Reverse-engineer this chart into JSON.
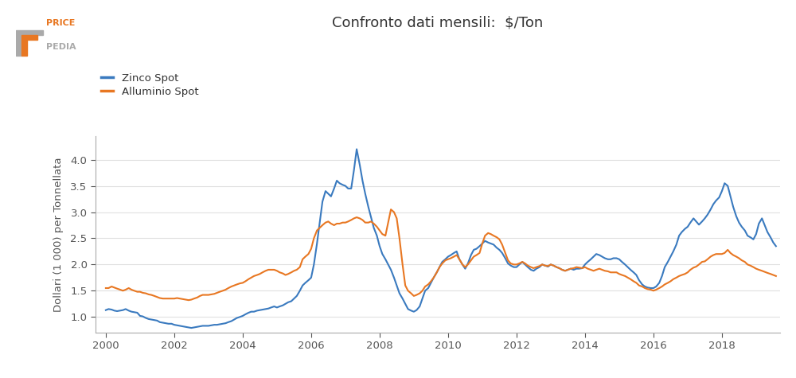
{
  "title": "Confronto dati mensili:  $/Ton",
  "ylabel": "Dollari (1 000) per Tonnellata",
  "zinc_color": "#3a7abf",
  "alum_color": "#e87722",
  "background_color": "#ffffff",
  "grid_color": "#e0e0e0",
  "ylim": [
    0.7,
    4.45
  ],
  "yticks": [
    1.0,
    1.5,
    2.0,
    2.5,
    3.0,
    3.5,
    4.0
  ],
  "xlim": [
    1999.7,
    2019.7
  ],
  "xticks": [
    2000,
    2002,
    2004,
    2006,
    2008,
    2010,
    2012,
    2014,
    2016,
    2018
  ],
  "legend_labels": [
    "Zinco Spot",
    "Alluminio Spot"
  ],
  "zinc_data": [
    [
      2000.0,
      1.13
    ],
    [
      2000.08,
      1.15
    ],
    [
      2000.17,
      1.14
    ],
    [
      2000.25,
      1.12
    ],
    [
      2000.33,
      1.11
    ],
    [
      2000.42,
      1.12
    ],
    [
      2000.5,
      1.13
    ],
    [
      2000.58,
      1.15
    ],
    [
      2000.67,
      1.12
    ],
    [
      2000.75,
      1.1
    ],
    [
      2000.83,
      1.09
    ],
    [
      2000.92,
      1.08
    ],
    [
      2001.0,
      1.02
    ],
    [
      2001.08,
      1.01
    ],
    [
      2001.17,
      0.98
    ],
    [
      2001.25,
      0.96
    ],
    [
      2001.33,
      0.95
    ],
    [
      2001.42,
      0.94
    ],
    [
      2001.5,
      0.93
    ],
    [
      2001.58,
      0.9
    ],
    [
      2001.67,
      0.89
    ],
    [
      2001.75,
      0.88
    ],
    [
      2001.83,
      0.87
    ],
    [
      2001.92,
      0.87
    ],
    [
      2002.0,
      0.85
    ],
    [
      2002.08,
      0.84
    ],
    [
      2002.17,
      0.83
    ],
    [
      2002.25,
      0.82
    ],
    [
      2002.33,
      0.81
    ],
    [
      2002.42,
      0.8
    ],
    [
      2002.5,
      0.79
    ],
    [
      2002.58,
      0.8
    ],
    [
      2002.67,
      0.81
    ],
    [
      2002.75,
      0.82
    ],
    [
      2002.83,
      0.83
    ],
    [
      2002.92,
      0.83
    ],
    [
      2003.0,
      0.83
    ],
    [
      2003.08,
      0.84
    ],
    [
      2003.17,
      0.85
    ],
    [
      2003.25,
      0.85
    ],
    [
      2003.33,
      0.86
    ],
    [
      2003.42,
      0.87
    ],
    [
      2003.5,
      0.88
    ],
    [
      2003.58,
      0.9
    ],
    [
      2003.67,
      0.92
    ],
    [
      2003.75,
      0.95
    ],
    [
      2003.83,
      0.98
    ],
    [
      2003.92,
      1.0
    ],
    [
      2004.0,
      1.02
    ],
    [
      2004.08,
      1.05
    ],
    [
      2004.17,
      1.08
    ],
    [
      2004.25,
      1.1
    ],
    [
      2004.33,
      1.1
    ],
    [
      2004.42,
      1.12
    ],
    [
      2004.5,
      1.13
    ],
    [
      2004.58,
      1.14
    ],
    [
      2004.67,
      1.15
    ],
    [
      2004.75,
      1.16
    ],
    [
      2004.83,
      1.18
    ],
    [
      2004.92,
      1.2
    ],
    [
      2005.0,
      1.18
    ],
    [
      2005.08,
      1.2
    ],
    [
      2005.17,
      1.22
    ],
    [
      2005.25,
      1.25
    ],
    [
      2005.33,
      1.28
    ],
    [
      2005.42,
      1.3
    ],
    [
      2005.5,
      1.35
    ],
    [
      2005.58,
      1.4
    ],
    [
      2005.67,
      1.5
    ],
    [
      2005.75,
      1.6
    ],
    [
      2005.83,
      1.65
    ],
    [
      2005.92,
      1.7
    ],
    [
      2006.0,
      1.75
    ],
    [
      2006.08,
      2.0
    ],
    [
      2006.17,
      2.4
    ],
    [
      2006.25,
      2.8
    ],
    [
      2006.33,
      3.2
    ],
    [
      2006.42,
      3.4
    ],
    [
      2006.5,
      3.35
    ],
    [
      2006.58,
      3.3
    ],
    [
      2006.67,
      3.45
    ],
    [
      2006.75,
      3.6
    ],
    [
      2006.83,
      3.55
    ],
    [
      2006.92,
      3.52
    ],
    [
      2007.0,
      3.5
    ],
    [
      2007.08,
      3.45
    ],
    [
      2007.17,
      3.45
    ],
    [
      2007.25,
      3.8
    ],
    [
      2007.33,
      4.2
    ],
    [
      2007.42,
      3.9
    ],
    [
      2007.5,
      3.6
    ],
    [
      2007.58,
      3.35
    ],
    [
      2007.67,
      3.1
    ],
    [
      2007.75,
      2.9
    ],
    [
      2007.83,
      2.7
    ],
    [
      2007.92,
      2.55
    ],
    [
      2008.0,
      2.35
    ],
    [
      2008.08,
      2.2
    ],
    [
      2008.17,
      2.1
    ],
    [
      2008.25,
      2.0
    ],
    [
      2008.33,
      1.9
    ],
    [
      2008.42,
      1.75
    ],
    [
      2008.5,
      1.6
    ],
    [
      2008.58,
      1.45
    ],
    [
      2008.67,
      1.35
    ],
    [
      2008.75,
      1.25
    ],
    [
      2008.83,
      1.15
    ],
    [
      2008.92,
      1.12
    ],
    [
      2009.0,
      1.1
    ],
    [
      2009.08,
      1.13
    ],
    [
      2009.17,
      1.2
    ],
    [
      2009.25,
      1.35
    ],
    [
      2009.33,
      1.5
    ],
    [
      2009.42,
      1.55
    ],
    [
      2009.5,
      1.65
    ],
    [
      2009.58,
      1.75
    ],
    [
      2009.67,
      1.85
    ],
    [
      2009.75,
      1.95
    ],
    [
      2009.83,
      2.05
    ],
    [
      2009.92,
      2.1
    ],
    [
      2010.0,
      2.15
    ],
    [
      2010.08,
      2.18
    ],
    [
      2010.17,
      2.22
    ],
    [
      2010.25,
      2.25
    ],
    [
      2010.33,
      2.1
    ],
    [
      2010.42,
      2.0
    ],
    [
      2010.5,
      1.92
    ],
    [
      2010.58,
      2.02
    ],
    [
      2010.67,
      2.18
    ],
    [
      2010.75,
      2.28
    ],
    [
      2010.83,
      2.3
    ],
    [
      2010.92,
      2.35
    ],
    [
      2011.0,
      2.4
    ],
    [
      2011.08,
      2.45
    ],
    [
      2011.17,
      2.42
    ],
    [
      2011.25,
      2.4
    ],
    [
      2011.33,
      2.38
    ],
    [
      2011.42,
      2.32
    ],
    [
      2011.5,
      2.28
    ],
    [
      2011.58,
      2.22
    ],
    [
      2011.67,
      2.12
    ],
    [
      2011.75,
      2.02
    ],
    [
      2011.83,
      1.98
    ],
    [
      2011.92,
      1.95
    ],
    [
      2012.0,
      1.95
    ],
    [
      2012.08,
      2.0
    ],
    [
      2012.17,
      2.05
    ],
    [
      2012.25,
      2.0
    ],
    [
      2012.33,
      1.95
    ],
    [
      2012.42,
      1.9
    ],
    [
      2012.5,
      1.88
    ],
    [
      2012.58,
      1.92
    ],
    [
      2012.67,
      1.95
    ],
    [
      2012.75,
      2.0
    ],
    [
      2012.83,
      1.98
    ],
    [
      2012.92,
      1.96
    ],
    [
      2013.0,
      2.0
    ],
    [
      2013.08,
      1.98
    ],
    [
      2013.17,
      1.95
    ],
    [
      2013.25,
      1.93
    ],
    [
      2013.33,
      1.9
    ],
    [
      2013.42,
      1.88
    ],
    [
      2013.5,
      1.9
    ],
    [
      2013.58,
      1.92
    ],
    [
      2013.67,
      1.9
    ],
    [
      2013.75,
      1.92
    ],
    [
      2013.83,
      1.92
    ],
    [
      2013.92,
      1.93
    ],
    [
      2014.0,
      2.0
    ],
    [
      2014.08,
      2.05
    ],
    [
      2014.17,
      2.1
    ],
    [
      2014.25,
      2.15
    ],
    [
      2014.33,
      2.2
    ],
    [
      2014.42,
      2.18
    ],
    [
      2014.5,
      2.15
    ],
    [
      2014.58,
      2.12
    ],
    [
      2014.67,
      2.1
    ],
    [
      2014.75,
      2.1
    ],
    [
      2014.83,
      2.12
    ],
    [
      2014.92,
      2.12
    ],
    [
      2015.0,
      2.1
    ],
    [
      2015.08,
      2.05
    ],
    [
      2015.17,
      2.0
    ],
    [
      2015.25,
      1.95
    ],
    [
      2015.33,
      1.9
    ],
    [
      2015.42,
      1.85
    ],
    [
      2015.5,
      1.8
    ],
    [
      2015.58,
      1.7
    ],
    [
      2015.67,
      1.62
    ],
    [
      2015.75,
      1.58
    ],
    [
      2015.83,
      1.56
    ],
    [
      2015.92,
      1.55
    ],
    [
      2016.0,
      1.55
    ],
    [
      2016.08,
      1.58
    ],
    [
      2016.17,
      1.65
    ],
    [
      2016.25,
      1.78
    ],
    [
      2016.33,
      1.95
    ],
    [
      2016.42,
      2.05
    ],
    [
      2016.5,
      2.15
    ],
    [
      2016.58,
      2.25
    ],
    [
      2016.67,
      2.38
    ],
    [
      2016.75,
      2.55
    ],
    [
      2016.83,
      2.62
    ],
    [
      2016.92,
      2.68
    ],
    [
      2017.0,
      2.72
    ],
    [
      2017.08,
      2.8
    ],
    [
      2017.17,
      2.88
    ],
    [
      2017.25,
      2.82
    ],
    [
      2017.33,
      2.76
    ],
    [
      2017.42,
      2.82
    ],
    [
      2017.5,
      2.88
    ],
    [
      2017.58,
      2.95
    ],
    [
      2017.67,
      3.05
    ],
    [
      2017.75,
      3.15
    ],
    [
      2017.83,
      3.22
    ],
    [
      2017.92,
      3.28
    ],
    [
      2018.0,
      3.4
    ],
    [
      2018.08,
      3.55
    ],
    [
      2018.17,
      3.5
    ],
    [
      2018.25,
      3.3
    ],
    [
      2018.33,
      3.1
    ],
    [
      2018.42,
      2.92
    ],
    [
      2018.5,
      2.8
    ],
    [
      2018.58,
      2.72
    ],
    [
      2018.67,
      2.65
    ],
    [
      2018.75,
      2.55
    ],
    [
      2018.83,
      2.52
    ],
    [
      2018.92,
      2.48
    ],
    [
      2019.0,
      2.58
    ],
    [
      2019.08,
      2.78
    ],
    [
      2019.17,
      2.88
    ],
    [
      2019.25,
      2.75
    ],
    [
      2019.33,
      2.62
    ],
    [
      2019.42,
      2.52
    ],
    [
      2019.5,
      2.42
    ],
    [
      2019.58,
      2.35
    ]
  ],
  "alum_data": [
    [
      2000.0,
      1.55
    ],
    [
      2000.08,
      1.55
    ],
    [
      2000.17,
      1.58
    ],
    [
      2000.25,
      1.56
    ],
    [
      2000.33,
      1.54
    ],
    [
      2000.42,
      1.52
    ],
    [
      2000.5,
      1.5
    ],
    [
      2000.58,
      1.52
    ],
    [
      2000.67,
      1.55
    ],
    [
      2000.75,
      1.52
    ],
    [
      2000.83,
      1.5
    ],
    [
      2000.92,
      1.48
    ],
    [
      2001.0,
      1.48
    ],
    [
      2001.08,
      1.46
    ],
    [
      2001.17,
      1.45
    ],
    [
      2001.25,
      1.43
    ],
    [
      2001.33,
      1.42
    ],
    [
      2001.42,
      1.4
    ],
    [
      2001.5,
      1.38
    ],
    [
      2001.58,
      1.36
    ],
    [
      2001.67,
      1.35
    ],
    [
      2001.75,
      1.35
    ],
    [
      2001.83,
      1.35
    ],
    [
      2001.92,
      1.35
    ],
    [
      2002.0,
      1.35
    ],
    [
      2002.08,
      1.36
    ],
    [
      2002.17,
      1.35
    ],
    [
      2002.25,
      1.34
    ],
    [
      2002.33,
      1.33
    ],
    [
      2002.42,
      1.32
    ],
    [
      2002.5,
      1.33
    ],
    [
      2002.58,
      1.35
    ],
    [
      2002.67,
      1.37
    ],
    [
      2002.75,
      1.4
    ],
    [
      2002.83,
      1.42
    ],
    [
      2002.92,
      1.42
    ],
    [
      2003.0,
      1.42
    ],
    [
      2003.08,
      1.43
    ],
    [
      2003.17,
      1.44
    ],
    [
      2003.25,
      1.46
    ],
    [
      2003.33,
      1.48
    ],
    [
      2003.42,
      1.5
    ],
    [
      2003.5,
      1.52
    ],
    [
      2003.58,
      1.55
    ],
    [
      2003.67,
      1.58
    ],
    [
      2003.75,
      1.6
    ],
    [
      2003.83,
      1.62
    ],
    [
      2003.92,
      1.64
    ],
    [
      2004.0,
      1.65
    ],
    [
      2004.08,
      1.68
    ],
    [
      2004.17,
      1.72
    ],
    [
      2004.25,
      1.75
    ],
    [
      2004.33,
      1.78
    ],
    [
      2004.42,
      1.8
    ],
    [
      2004.5,
      1.82
    ],
    [
      2004.58,
      1.85
    ],
    [
      2004.67,
      1.88
    ],
    [
      2004.75,
      1.9
    ],
    [
      2004.83,
      1.9
    ],
    [
      2004.92,
      1.9
    ],
    [
      2005.0,
      1.88
    ],
    [
      2005.08,
      1.85
    ],
    [
      2005.17,
      1.83
    ],
    [
      2005.25,
      1.8
    ],
    [
      2005.33,
      1.82
    ],
    [
      2005.42,
      1.85
    ],
    [
      2005.5,
      1.88
    ],
    [
      2005.58,
      1.9
    ],
    [
      2005.67,
      1.95
    ],
    [
      2005.75,
      2.1
    ],
    [
      2005.83,
      2.15
    ],
    [
      2005.92,
      2.2
    ],
    [
      2006.0,
      2.3
    ],
    [
      2006.08,
      2.5
    ],
    [
      2006.17,
      2.65
    ],
    [
      2006.25,
      2.7
    ],
    [
      2006.33,
      2.75
    ],
    [
      2006.42,
      2.8
    ],
    [
      2006.5,
      2.82
    ],
    [
      2006.58,
      2.78
    ],
    [
      2006.67,
      2.75
    ],
    [
      2006.75,
      2.78
    ],
    [
      2006.83,
      2.78
    ],
    [
      2006.92,
      2.8
    ],
    [
      2007.0,
      2.8
    ],
    [
      2007.08,
      2.82
    ],
    [
      2007.17,
      2.85
    ],
    [
      2007.25,
      2.88
    ],
    [
      2007.33,
      2.9
    ],
    [
      2007.42,
      2.88
    ],
    [
      2007.5,
      2.85
    ],
    [
      2007.58,
      2.8
    ],
    [
      2007.67,
      2.8
    ],
    [
      2007.75,
      2.82
    ],
    [
      2007.83,
      2.78
    ],
    [
      2007.92,
      2.72
    ],
    [
      2008.0,
      2.65
    ],
    [
      2008.08,
      2.58
    ],
    [
      2008.17,
      2.55
    ],
    [
      2008.25,
      2.8
    ],
    [
      2008.33,
      3.05
    ],
    [
      2008.42,
      3.0
    ],
    [
      2008.5,
      2.88
    ],
    [
      2008.58,
      2.5
    ],
    [
      2008.67,
      2.0
    ],
    [
      2008.75,
      1.6
    ],
    [
      2008.83,
      1.5
    ],
    [
      2008.92,
      1.45
    ],
    [
      2009.0,
      1.4
    ],
    [
      2009.08,
      1.42
    ],
    [
      2009.17,
      1.45
    ],
    [
      2009.25,
      1.5
    ],
    [
      2009.33,
      1.58
    ],
    [
      2009.42,
      1.62
    ],
    [
      2009.5,
      1.68
    ],
    [
      2009.58,
      1.75
    ],
    [
      2009.67,
      1.85
    ],
    [
      2009.75,
      1.95
    ],
    [
      2009.83,
      2.02
    ],
    [
      2009.92,
      2.08
    ],
    [
      2010.0,
      2.1
    ],
    [
      2010.08,
      2.12
    ],
    [
      2010.17,
      2.15
    ],
    [
      2010.25,
      2.18
    ],
    [
      2010.33,
      2.1
    ],
    [
      2010.42,
      2.0
    ],
    [
      2010.5,
      1.95
    ],
    [
      2010.58,
      2.0
    ],
    [
      2010.67,
      2.08
    ],
    [
      2010.75,
      2.15
    ],
    [
      2010.83,
      2.18
    ],
    [
      2010.92,
      2.22
    ],
    [
      2011.0,
      2.4
    ],
    [
      2011.08,
      2.55
    ],
    [
      2011.17,
      2.6
    ],
    [
      2011.25,
      2.58
    ],
    [
      2011.33,
      2.55
    ],
    [
      2011.42,
      2.52
    ],
    [
      2011.5,
      2.48
    ],
    [
      2011.58,
      2.38
    ],
    [
      2011.67,
      2.22
    ],
    [
      2011.75,
      2.08
    ],
    [
      2011.83,
      2.02
    ],
    [
      2011.92,
      2.0
    ],
    [
      2012.0,
      2.0
    ],
    [
      2012.08,
      2.02
    ],
    [
      2012.17,
      2.05
    ],
    [
      2012.25,
      2.02
    ],
    [
      2012.33,
      1.98
    ],
    [
      2012.42,
      1.95
    ],
    [
      2012.5,
      1.93
    ],
    [
      2012.58,
      1.95
    ],
    [
      2012.67,
      1.97
    ],
    [
      2012.75,
      2.0
    ],
    [
      2012.83,
      1.98
    ],
    [
      2012.92,
      1.97
    ],
    [
      2013.0,
      2.0
    ],
    [
      2013.08,
      1.98
    ],
    [
      2013.17,
      1.95
    ],
    [
      2013.25,
      1.93
    ],
    [
      2013.33,
      1.9
    ],
    [
      2013.42,
      1.88
    ],
    [
      2013.5,
      1.9
    ],
    [
      2013.58,
      1.92
    ],
    [
      2013.67,
      1.93
    ],
    [
      2013.75,
      1.95
    ],
    [
      2013.83,
      1.94
    ],
    [
      2013.92,
      1.93
    ],
    [
      2014.0,
      1.95
    ],
    [
      2014.08,
      1.92
    ],
    [
      2014.17,
      1.9
    ],
    [
      2014.25,
      1.88
    ],
    [
      2014.33,
      1.9
    ],
    [
      2014.42,
      1.92
    ],
    [
      2014.5,
      1.9
    ],
    [
      2014.58,
      1.88
    ],
    [
      2014.67,
      1.87
    ],
    [
      2014.75,
      1.85
    ],
    [
      2014.83,
      1.85
    ],
    [
      2014.92,
      1.85
    ],
    [
      2015.0,
      1.82
    ],
    [
      2015.08,
      1.8
    ],
    [
      2015.17,
      1.78
    ],
    [
      2015.25,
      1.75
    ],
    [
      2015.33,
      1.72
    ],
    [
      2015.42,
      1.68
    ],
    [
      2015.5,
      1.65
    ],
    [
      2015.58,
      1.6
    ],
    [
      2015.67,
      1.58
    ],
    [
      2015.75,
      1.55
    ],
    [
      2015.83,
      1.53
    ],
    [
      2015.92,
      1.52
    ],
    [
      2016.0,
      1.5
    ],
    [
      2016.08,
      1.52
    ],
    [
      2016.17,
      1.55
    ],
    [
      2016.25,
      1.58
    ],
    [
      2016.33,
      1.62
    ],
    [
      2016.42,
      1.65
    ],
    [
      2016.5,
      1.68
    ],
    [
      2016.58,
      1.72
    ],
    [
      2016.67,
      1.75
    ],
    [
      2016.75,
      1.78
    ],
    [
      2016.83,
      1.8
    ],
    [
      2016.92,
      1.82
    ],
    [
      2017.0,
      1.85
    ],
    [
      2017.08,
      1.9
    ],
    [
      2017.17,
      1.94
    ],
    [
      2017.25,
      1.96
    ],
    [
      2017.33,
      2.0
    ],
    [
      2017.42,
      2.05
    ],
    [
      2017.5,
      2.06
    ],
    [
      2017.58,
      2.1
    ],
    [
      2017.67,
      2.15
    ],
    [
      2017.75,
      2.18
    ],
    [
      2017.83,
      2.2
    ],
    [
      2017.92,
      2.2
    ],
    [
      2018.0,
      2.2
    ],
    [
      2018.08,
      2.22
    ],
    [
      2018.17,
      2.28
    ],
    [
      2018.25,
      2.22
    ],
    [
      2018.33,
      2.18
    ],
    [
      2018.42,
      2.15
    ],
    [
      2018.5,
      2.12
    ],
    [
      2018.58,
      2.08
    ],
    [
      2018.67,
      2.05
    ],
    [
      2018.75,
      2.0
    ],
    [
      2018.83,
      1.98
    ],
    [
      2018.92,
      1.95
    ],
    [
      2019.0,
      1.92
    ],
    [
      2019.08,
      1.9
    ],
    [
      2019.17,
      1.88
    ],
    [
      2019.25,
      1.86
    ],
    [
      2019.33,
      1.84
    ],
    [
      2019.42,
      1.82
    ],
    [
      2019.5,
      1.8
    ],
    [
      2019.58,
      1.78
    ]
  ]
}
